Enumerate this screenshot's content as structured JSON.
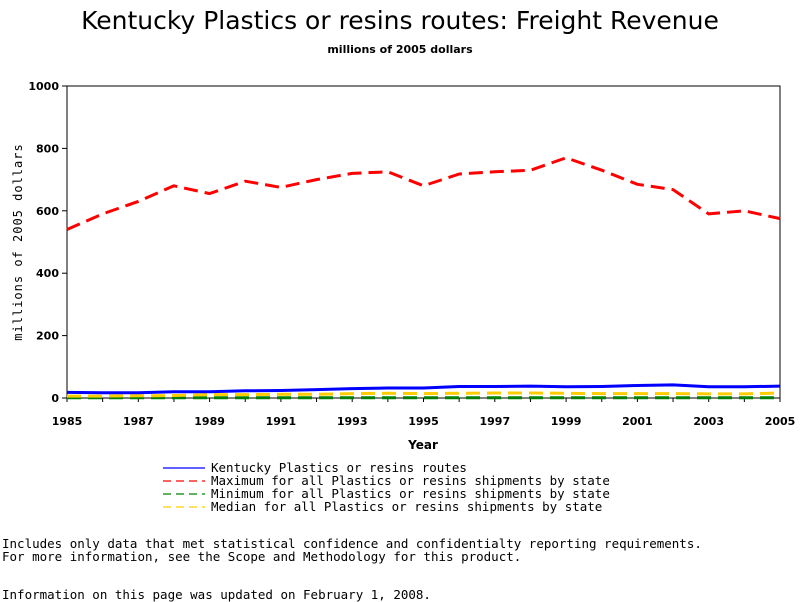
{
  "chart_data": {
    "type": "line",
    "title": "Kentucky Plastics or resins routes: Freight Revenue",
    "subtitle": "millions of 2005 dollars",
    "xlabel": "Year",
    "ylabel": "millions of 2005 dollars",
    "xlim": [
      1985,
      2005
    ],
    "ylim": [
      0,
      1000
    ],
    "x_ticks": [
      "1985",
      "1987",
      "1989",
      "1991",
      "1993",
      "1995",
      "1997",
      "1999",
      "2001",
      "2003",
      "2005"
    ],
    "y_ticks": [
      "0",
      "200",
      "400",
      "600",
      "800",
      "1000"
    ],
    "grid": false,
    "legend_position": "bottom",
    "x": [
      1985,
      1986,
      1987,
      1988,
      1989,
      1990,
      1991,
      1992,
      1993,
      1994,
      1995,
      1996,
      1997,
      1998,
      1999,
      2000,
      2001,
      2002,
      2003,
      2004,
      2005
    ],
    "series": [
      {
        "name": "Kentucky Plastics or resins routes",
        "color": "#0000ff",
        "style": "solid",
        "values": [
          18,
          17,
          17,
          20,
          20,
          23,
          24,
          27,
          30,
          32,
          32,
          37,
          37,
          38,
          36,
          37,
          40,
          42,
          36,
          36,
          38
        ]
      },
      {
        "name": "Maximum for all Plastics or resins shipments by state",
        "color": "#ff0000",
        "style": "dashed",
        "values": [
          540,
          590,
          630,
          680,
          655,
          695,
          675,
          700,
          720,
          725,
          680,
          718,
          725,
          730,
          770,
          730,
          685,
          668,
          590,
          600,
          575
        ]
      },
      {
        "name": "Minimum for all Plastics or resins shipments by state",
        "color": "#008000",
        "style": "dashed",
        "values": [
          1,
          1,
          1,
          1,
          1,
          1,
          1,
          1,
          1,
          1,
          1,
          1,
          1,
          1,
          1,
          1,
          1,
          1,
          1,
          1,
          1
        ]
      },
      {
        "name": "Median for all Plastics or resins shipments by state",
        "color": "#ffcc00",
        "style": "dashed",
        "values": [
          6,
          6,
          7,
          8,
          11,
          11,
          12,
          12,
          14,
          15,
          14,
          15,
          16,
          16,
          15,
          14,
          14,
          14,
          13,
          13,
          16
        ]
      }
    ]
  },
  "notes": {
    "line1": "Includes only data that met statistical confidence and confidentialty reporting requirements.",
    "line2": "For more information, see the Scope and Methodology for this product.",
    "line3": "Information on this page was updated on February 1, 2008."
  }
}
